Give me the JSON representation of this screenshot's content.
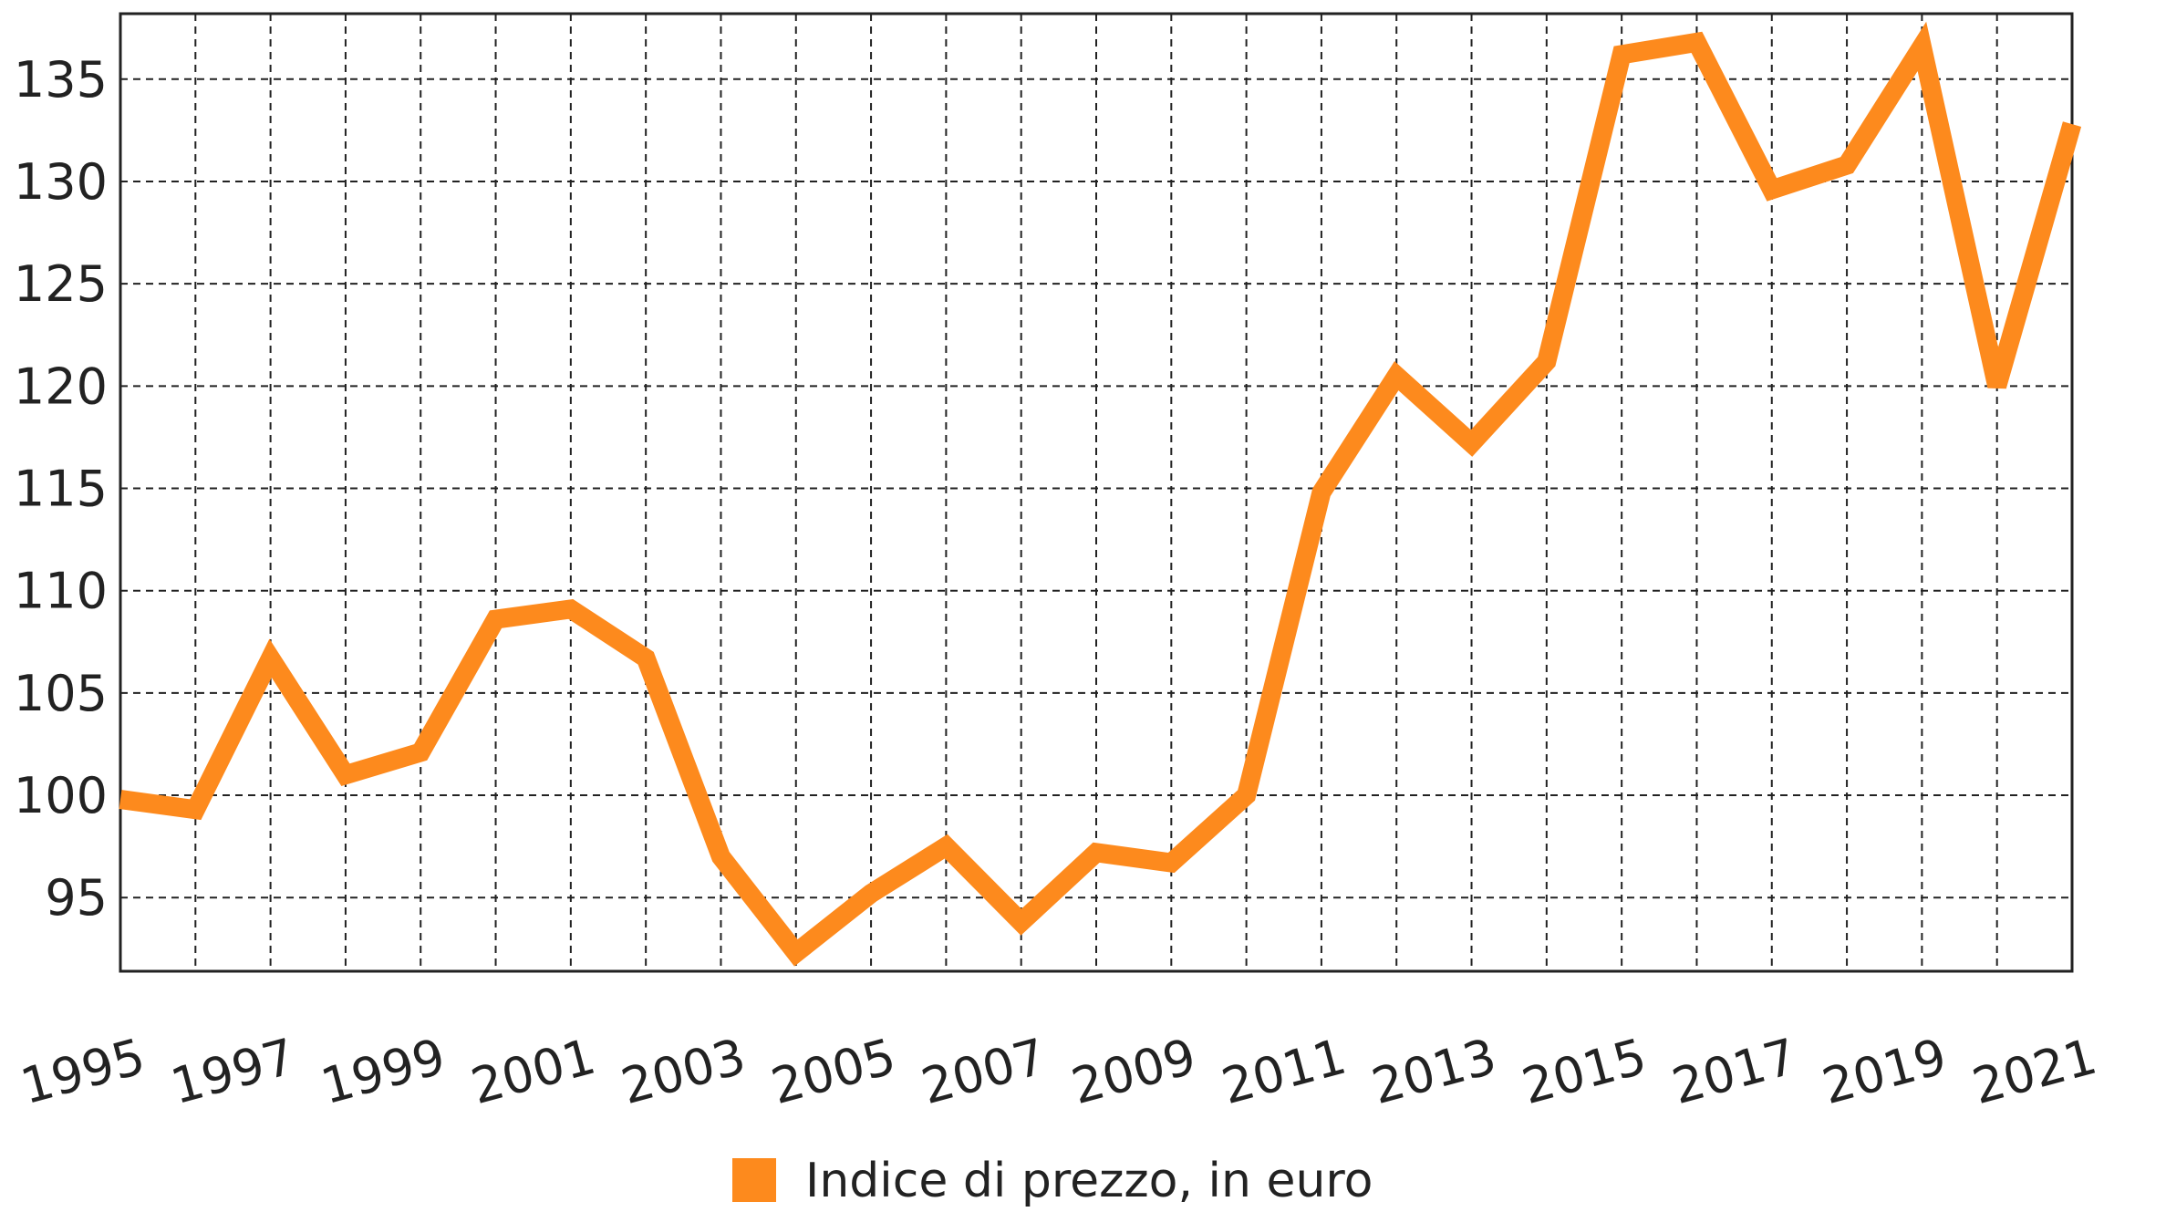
{
  "chart_data": {
    "type": "line",
    "x": [
      1995,
      1996,
      1997,
      1998,
      1999,
      2000,
      2001,
      2002,
      2003,
      2004,
      2005,
      2006,
      2007,
      2008,
      2009,
      2010,
      2011,
      2012,
      2013,
      2014,
      2015,
      2016,
      2017,
      2018,
      2019,
      2020,
      2021
    ],
    "series": [
      {
        "name": "Indice di prezzo, in euro",
        "color": "#fd8a1d",
        "values": [
          99.8,
          99.3,
          106.7,
          101.0,
          102.1,
          108.6,
          109.1,
          106.7,
          97.0,
          92.3,
          95.2,
          97.5,
          93.8,
          97.2,
          96.7,
          100.0,
          114.8,
          120.5,
          117.2,
          121.2,
          136.2,
          136.8,
          129.6,
          130.8,
          136.6,
          120.0,
          132.8
        ]
      }
    ],
    "xlim": [
      1995,
      2021
    ],
    "xticks": [
      1995,
      1997,
      1999,
      2001,
      2003,
      2005,
      2007,
      2009,
      2011,
      2013,
      2015,
      2017,
      2019,
      2021
    ],
    "xminor_ticks": [
      1996,
      1998,
      2000,
      2002,
      2004,
      2006,
      2008,
      2010,
      2012,
      2014,
      2016,
      2018,
      2020
    ],
    "ylim": [
      91.4,
      138.2
    ],
    "yticks": [
      95,
      100,
      105,
      110,
      115,
      120,
      125,
      130,
      135
    ],
    "grid": true,
    "legend": "bottom"
  }
}
